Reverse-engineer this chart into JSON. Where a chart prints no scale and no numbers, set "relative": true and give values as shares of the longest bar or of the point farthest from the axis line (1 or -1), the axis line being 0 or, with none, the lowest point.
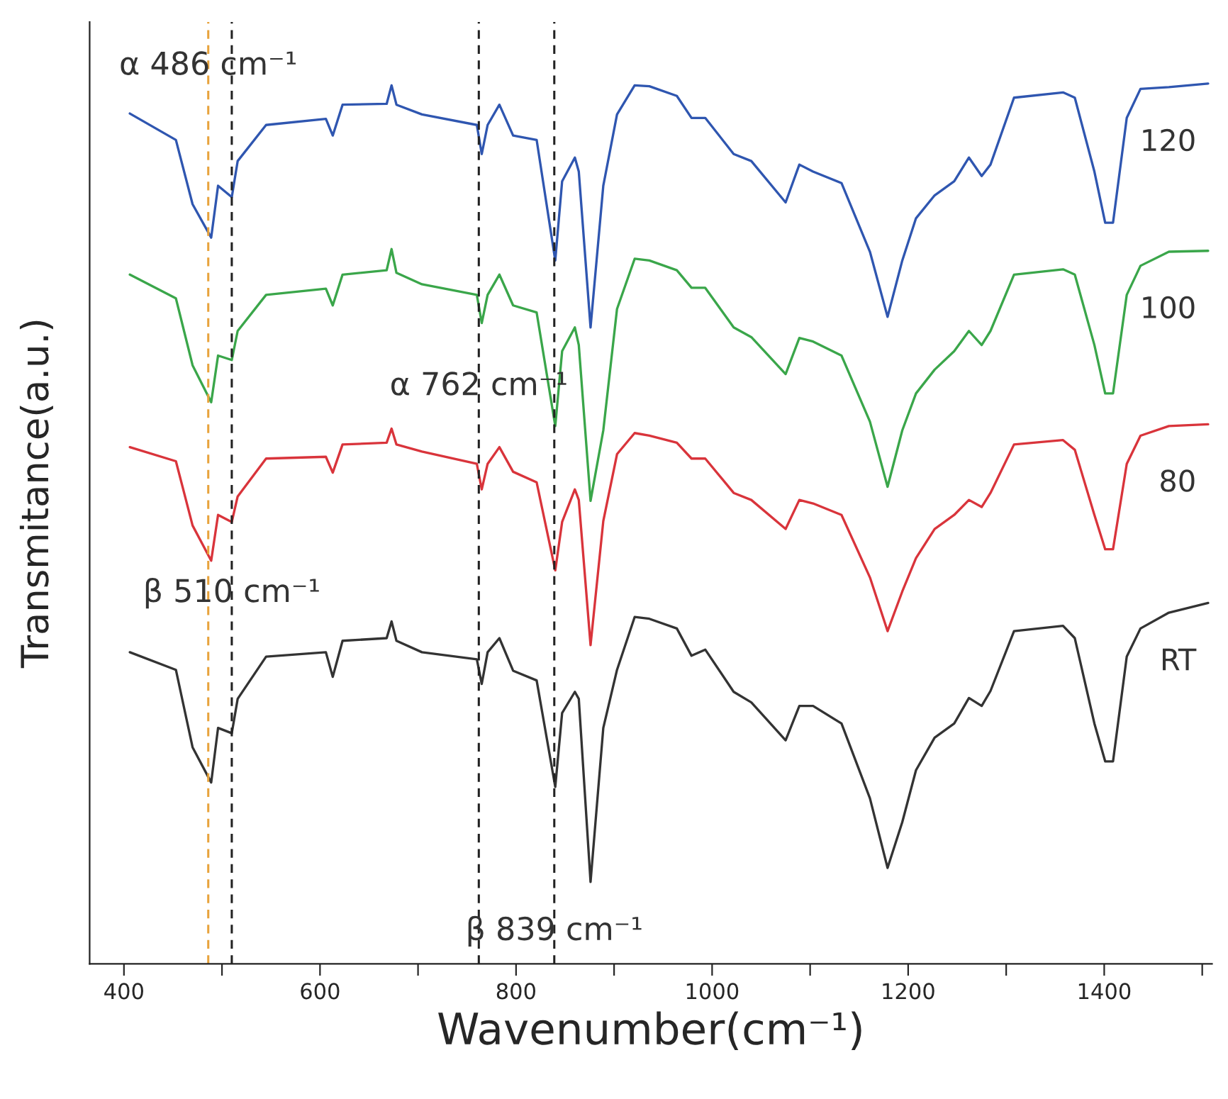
{
  "chart_data": {
    "type": "line",
    "relative": true,
    "xlabel": "Wavenumber(cm⁻¹)",
    "ylabel": "Transmitance(a.u.)",
    "xlim": [
      365,
      1510
    ],
    "xticks": [
      400,
      {
        "value": 500,
        "label": null
      },
      600,
      {
        "value": 700,
        "label": null
      },
      800,
      {
        "value": 900,
        "label": null
      },
      1000,
      {
        "value": 1100,
        "label": null
      },
      1200,
      {
        "value": 1300,
        "label": null
      },
      1400,
      {
        "value": 1500,
        "label": null
      }
    ],
    "x": [
      406,
      453,
      470,
      489,
      496,
      510,
      516,
      545,
      606,
      613,
      623,
      668,
      673,
      678,
      704,
      760,
      765,
      771,
      783,
      797,
      821,
      840,
      847,
      860,
      864,
      876,
      889,
      903,
      921,
      936,
      964,
      979,
      993,
      1022,
      1040,
      1075,
      1089,
      1103,
      1132,
      1161,
      1179,
      1194,
      1208,
      1227,
      1247,
      1262,
      1275,
      1284,
      1308,
      1358,
      1370,
      1390,
      1401,
      1409,
      1423,
      1437,
      1466,
      1506
    ],
    "series": [
      {
        "name": "120",
        "color": "#2f56b0",
        "values": [
          0.966,
          0.936,
          0.863,
          0.825,
          0.884,
          0.871,
          0.912,
          0.953,
          0.96,
          0.941,
          0.976,
          0.977,
          0.998,
          0.976,
          0.965,
          0.953,
          0.92,
          0.953,
          0.976,
          0.941,
          0.936,
          0.799,
          0.889,
          0.916,
          0.9,
          0.723,
          0.884,
          0.965,
          0.998,
          0.997,
          0.986,
          0.961,
          0.961,
          0.92,
          0.912,
          0.865,
          0.908,
          0.9,
          0.887,
          0.809,
          0.735,
          0.799,
          0.847,
          0.873,
          0.889,
          0.916,
          0.895,
          0.908,
          0.984,
          0.99,
          0.984,
          0.9,
          0.842,
          0.842,
          0.961,
          0.994,
          0.996,
          1.0
        ]
      },
      {
        "name": "100",
        "color": "#3aa64a",
        "values": [
          0.783,
          0.756,
          0.68,
          0.638,
          0.691,
          0.686,
          0.719,
          0.76,
          0.767,
          0.748,
          0.783,
          0.788,
          0.812,
          0.785,
          0.772,
          0.76,
          0.728,
          0.76,
          0.783,
          0.748,
          0.74,
          0.611,
          0.696,
          0.723,
          0.703,
          0.526,
          0.606,
          0.744,
          0.801,
          0.799,
          0.788,
          0.768,
          0.768,
          0.723,
          0.712,
          0.67,
          0.711,
          0.707,
          0.691,
          0.616,
          0.542,
          0.606,
          0.648,
          0.675,
          0.696,
          0.719,
          0.703,
          0.719,
          0.783,
          0.789,
          0.783,
          0.703,
          0.648,
          0.648,
          0.76,
          0.793,
          0.809,
          0.81
        ]
      },
      {
        "name": "80",
        "color": "#d9343b",
        "values": [
          0.587,
          0.571,
          0.498,
          0.458,
          0.51,
          0.502,
          0.531,
          0.574,
          0.576,
          0.558,
          0.59,
          0.592,
          0.608,
          0.59,
          0.582,
          0.568,
          0.539,
          0.568,
          0.587,
          0.559,
          0.547,
          0.447,
          0.502,
          0.539,
          0.527,
          0.362,
          0.503,
          0.579,
          0.603,
          0.6,
          0.592,
          0.574,
          0.574,
          0.535,
          0.527,
          0.494,
          0.527,
          0.523,
          0.51,
          0.439,
          0.378,
          0.423,
          0.461,
          0.494,
          0.51,
          0.527,
          0.519,
          0.535,
          0.59,
          0.595,
          0.584,
          0.51,
          0.471,
          0.471,
          0.568,
          0.6,
          0.611,
          0.613
        ]
      },
      {
        "name": "RT",
        "color": "#333333",
        "values": [
          0.354,
          0.334,
          0.246,
          0.206,
          0.268,
          0.262,
          0.301,
          0.349,
          0.354,
          0.326,
          0.367,
          0.37,
          0.389,
          0.367,
          0.354,
          0.346,
          0.318,
          0.354,
          0.37,
          0.333,
          0.322,
          0.201,
          0.285,
          0.309,
          0.301,
          0.093,
          0.268,
          0.334,
          0.394,
          0.392,
          0.381,
          0.35,
          0.357,
          0.309,
          0.297,
          0.254,
          0.293,
          0.293,
          0.273,
          0.188,
          0.109,
          0.161,
          0.22,
          0.257,
          0.273,
          0.302,
          0.293,
          0.31,
          0.378,
          0.384,
          0.37,
          0.273,
          0.23,
          0.23,
          0.349,
          0.381,
          0.399,
          0.41
        ]
      }
    ],
    "ref_lines": [
      {
        "axis": "x",
        "value": 486,
        "color": "#e8a33c",
        "line_style": "dashed"
      },
      {
        "axis": "x",
        "value": 510,
        "color": "#222222",
        "line_style": "dashed"
      },
      {
        "axis": "x",
        "value": 762,
        "color": "#222222",
        "line_style": "dashed"
      },
      {
        "axis": "x",
        "value": 839,
        "color": "#222222",
        "line_style": "dashed"
      }
    ],
    "annotations": [
      {
        "text": "α 486 cm⁻¹",
        "x": 486,
        "y": 1.02
      },
      {
        "text": "α 762 cm⁻¹",
        "x": 762,
        "y": 0.656
      },
      {
        "text": "β 510 cm⁻¹",
        "x": 510,
        "y": 0.421
      },
      {
        "text": "β 839 cm⁻¹",
        "x": 839,
        "y": 0.037
      }
    ],
    "grid": false,
    "legend": false,
    "marker": "none",
    "line_style": "solid"
  }
}
